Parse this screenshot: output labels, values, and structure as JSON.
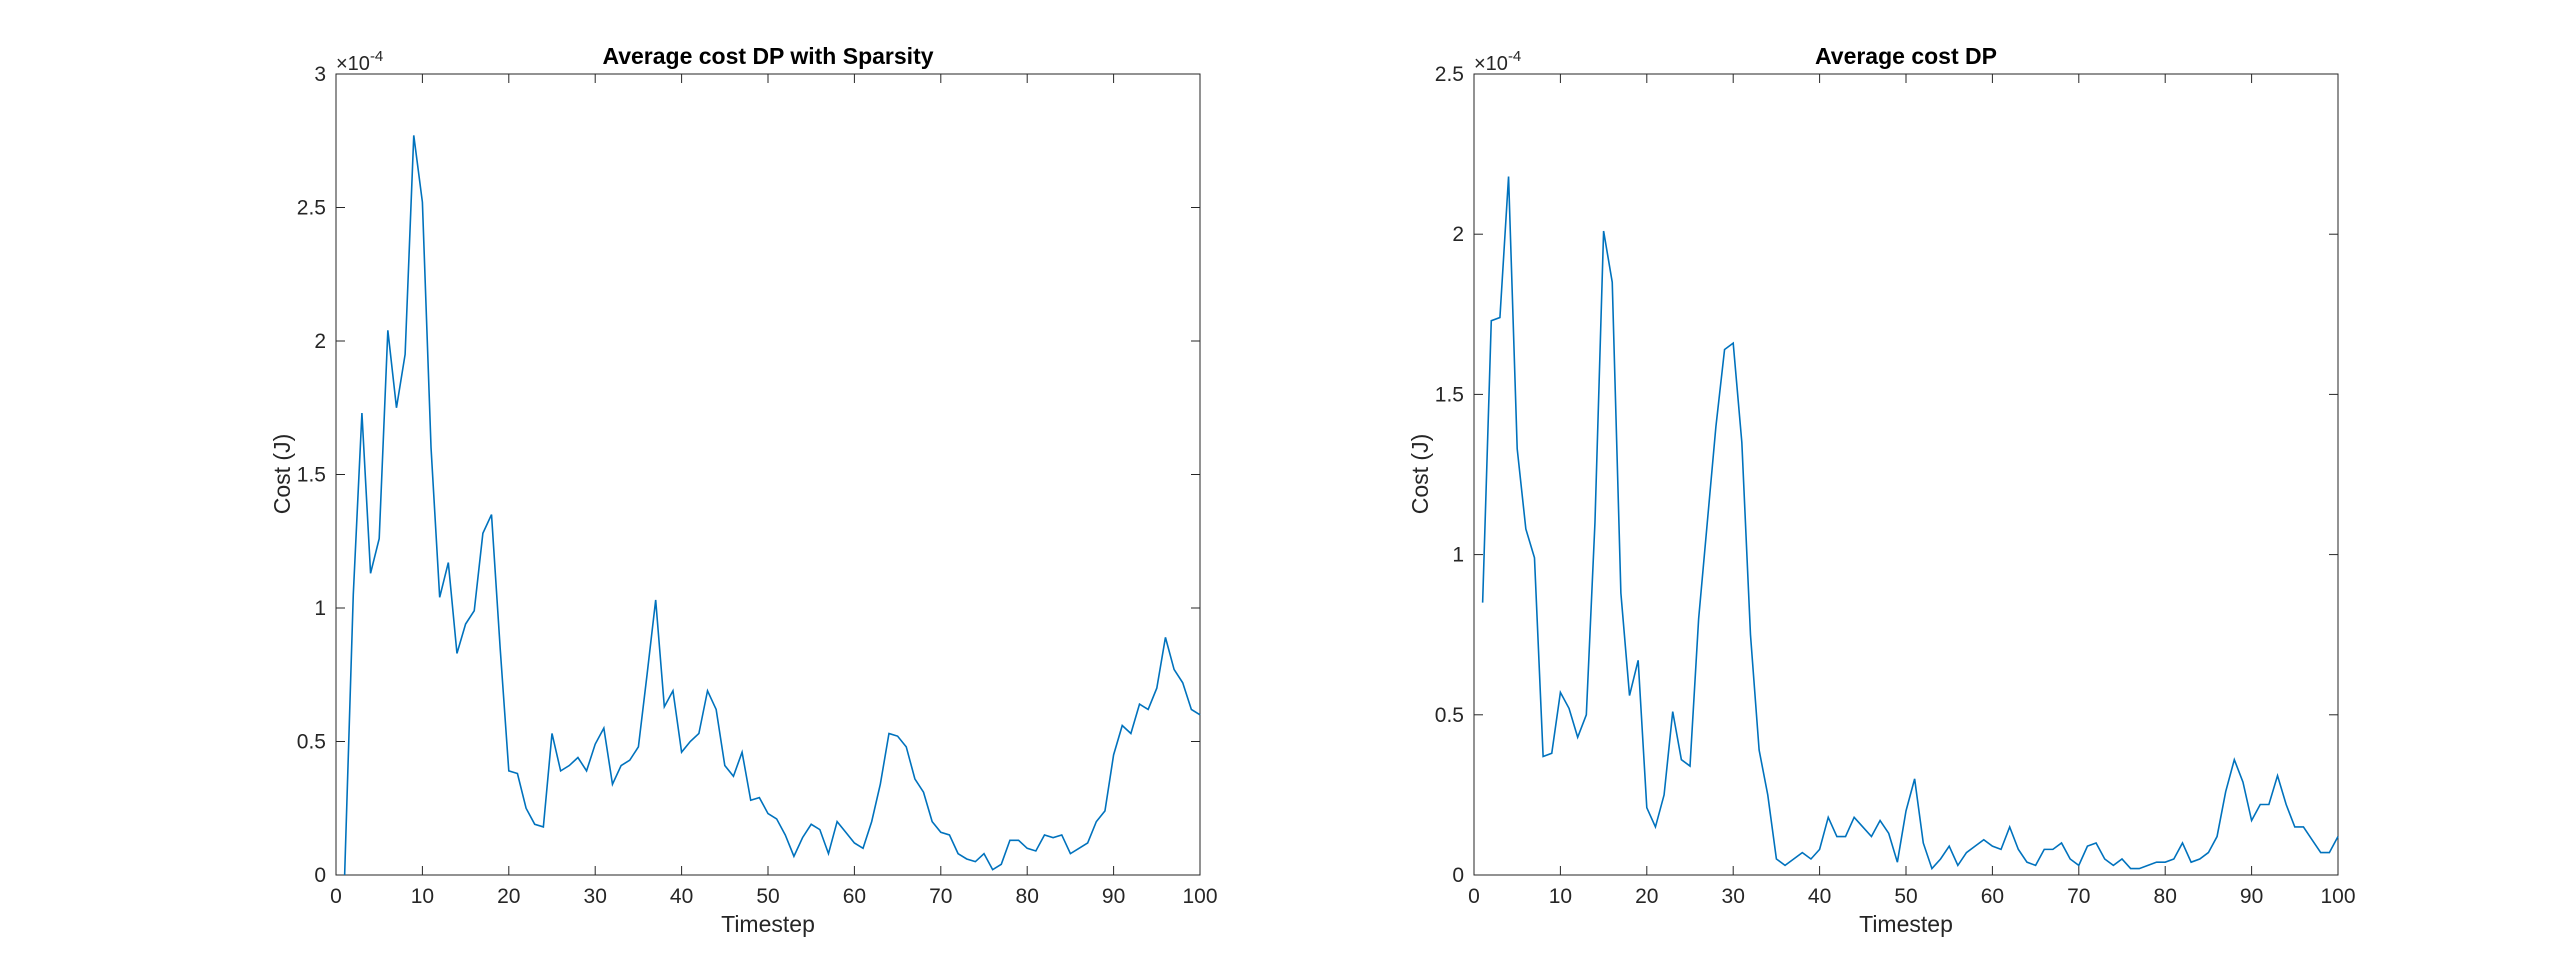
{
  "chart_data": [
    {
      "type": "line",
      "title": "Average cost DP with Sparsity",
      "xlabel": "Timestep",
      "ylabel": "Cost (J)",
      "exponent_label": "×10",
      "exponent_power": "-4",
      "xlim": [
        0,
        100
      ],
      "ylim": [
        0,
        3
      ],
      "xticks": [
        0,
        10,
        20,
        30,
        40,
        50,
        60,
        70,
        80,
        90,
        100
      ],
      "yticks": [
        0,
        0.5,
        1,
        1.5,
        2,
        2.5,
        3
      ],
      "ytick_labels": [
        "0",
        "0.5",
        "1",
        "1.5",
        "2",
        "2.5",
        "3"
      ],
      "line_color": "#0072BD",
      "grid": false,
      "series": [
        {
          "x": [
            1,
            2,
            3,
            4,
            5,
            6,
            7,
            8,
            9,
            10,
            11,
            12,
            13,
            14,
            15,
            16,
            17,
            18,
            19,
            20,
            21,
            22,
            23,
            24,
            25,
            26,
            27,
            28,
            29,
            30,
            31,
            32,
            33,
            34,
            35,
            36,
            37,
            38,
            39,
            40,
            41,
            42,
            43,
            44,
            45,
            46,
            47,
            48,
            49,
            50,
            51,
            52,
            53,
            54,
            55,
            56,
            57,
            58,
            59,
            60,
            61,
            62,
            63,
            64,
            65,
            66,
            67,
            68,
            69,
            70,
            71,
            72,
            73,
            74,
            75,
            76,
            77,
            78,
            79,
            80,
            81,
            82,
            83,
            84,
            85,
            86,
            87,
            88,
            89,
            90,
            91,
            92,
            93,
            94,
            95,
            96,
            97,
            98,
            99,
            100
          ],
          "values": [
            0,
            1.05,
            1.73,
            1.13,
            1.26,
            2.04,
            1.75,
            1.95,
            2.77,
            2.52,
            1.6,
            1.04,
            1.17,
            0.83,
            0.94,
            0.99,
            1.28,
            1.35,
            0.85,
            0.39,
            0.38,
            0.25,
            0.19,
            0.18,
            0.53,
            0.39,
            0.41,
            0.44,
            0.39,
            0.49,
            0.55,
            0.34,
            0.41,
            0.43,
            0.48,
            0.75,
            1.03,
            0.63,
            0.69,
            0.46,
            0.5,
            0.53,
            0.69,
            0.62,
            0.41,
            0.37,
            0.46,
            0.28,
            0.29,
            0.23,
            0.21,
            0.15,
            0.07,
            0.14,
            0.19,
            0.17,
            0.08,
            0.2,
            0.16,
            0.12,
            0.1,
            0.2,
            0.34,
            0.53,
            0.52,
            0.48,
            0.36,
            0.31,
            0.2,
            0.16,
            0.15,
            0.08,
            0.06,
            0.05,
            0.08,
            0.02,
            0.04,
            0.13,
            0.13,
            0.1,
            0.09,
            0.15,
            0.14,
            0.15,
            0.08,
            0.1,
            0.12,
            0.2,
            0.24,
            0.45,
            0.56,
            0.53,
            0.64,
            0.62,
            0.7,
            0.89,
            0.77,
            0.72,
            0.62,
            0.6
          ]
        }
      ]
    },
    {
      "type": "line",
      "title": "Average cost DP",
      "xlabel": "Timestep",
      "ylabel": "Cost (J)",
      "exponent_label": "×10",
      "exponent_power": "-4",
      "xlim": [
        0,
        100
      ],
      "ylim": [
        0,
        2.5
      ],
      "xticks": [
        0,
        10,
        20,
        30,
        40,
        50,
        60,
        70,
        80,
        90,
        100
      ],
      "yticks": [
        0,
        0.5,
        1,
        1.5,
        2,
        2.5
      ],
      "ytick_labels": [
        "0",
        "0.5",
        "1",
        "1.5",
        "2",
        "2.5"
      ],
      "line_color": "#0072BD",
      "grid": false,
      "series": [
        {
          "x": [
            1,
            2,
            3,
            4,
            5,
            6,
            7,
            8,
            9,
            10,
            11,
            12,
            13,
            14,
            15,
            16,
            17,
            18,
            19,
            20,
            21,
            22,
            23,
            24,
            25,
            26,
            27,
            28,
            29,
            30,
            31,
            32,
            33,
            34,
            35,
            36,
            37,
            38,
            39,
            40,
            41,
            42,
            43,
            44,
            45,
            46,
            47,
            48,
            49,
            50,
            51,
            52,
            53,
            54,
            55,
            56,
            57,
            58,
            59,
            60,
            61,
            62,
            63,
            64,
            65,
            66,
            67,
            68,
            69,
            70,
            71,
            72,
            73,
            74,
            75,
            76,
            77,
            78,
            79,
            80,
            81,
            82,
            83,
            84,
            85,
            86,
            87,
            88,
            89,
            90,
            91,
            92,
            93,
            94,
            95,
            96,
            97,
            98,
            99,
            100
          ],
          "values": [
            0.85,
            1.73,
            1.74,
            2.18,
            1.33,
            1.08,
            0.99,
            0.37,
            0.38,
            0.57,
            0.52,
            0.43,
            0.5,
            1.1,
            2.01,
            1.85,
            0.88,
            0.56,
            0.67,
            0.21,
            0.15,
            0.25,
            0.51,
            0.36,
            0.34,
            0.8,
            1.1,
            1.4,
            1.64,
            1.66,
            1.35,
            0.75,
            0.39,
            0.25,
            0.05,
            0.03,
            0.05,
            0.07,
            0.05,
            0.08,
            0.18,
            0.12,
            0.12,
            0.18,
            0.15,
            0.12,
            0.17,
            0.13,
            0.04,
            0.2,
            0.3,
            0.1,
            0.02,
            0.05,
            0.09,
            0.03,
            0.07,
            0.09,
            0.11,
            0.09,
            0.08,
            0.15,
            0.08,
            0.04,
            0.03,
            0.08,
            0.08,
            0.1,
            0.05,
            0.03,
            0.09,
            0.1,
            0.05,
            0.03,
            0.05,
            0.02,
            0.02,
            0.03,
            0.04,
            0.04,
            0.05,
            0.1,
            0.04,
            0.05,
            0.07,
            0.12,
            0.26,
            0.36,
            0.29,
            0.17,
            0.22,
            0.22,
            0.31,
            0.22,
            0.15,
            0.15,
            0.11,
            0.07,
            0.07,
            0.12
          ]
        }
      ]
    }
  ]
}
